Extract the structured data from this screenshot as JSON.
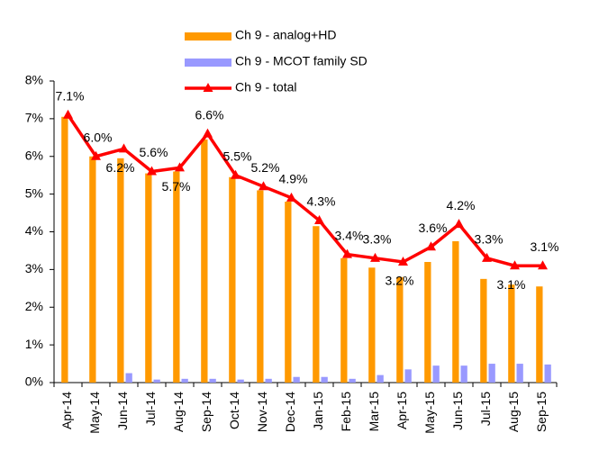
{
  "chart_data": {
    "type": "bar-line",
    "categories": [
      "Apr-14",
      "May-14",
      "Jun-14",
      "Jul-14",
      "Aug-14",
      "Sep-14",
      "Oct-14",
      "Nov-14",
      "Dec-14",
      "Jan-15",
      "Feb-15",
      "Mar-15",
      "Apr-15",
      "May-15",
      "Jun-15",
      "Jul-15",
      "Aug-15",
      "Sep-15"
    ],
    "series": [
      {
        "name": "Ch 9 - analog+HD",
        "color": "#ff9900",
        "kind": "bar",
        "values": [
          7.05,
          6.0,
          5.95,
          5.55,
          5.6,
          6.45,
          5.45,
          5.1,
          4.8,
          4.15,
          3.3,
          3.05,
          2.8,
          3.2,
          3.75,
          2.75,
          2.6,
          2.55
        ]
      },
      {
        "name": "Ch 9 - MCOT family SD",
        "color": "#9999ff",
        "kind": "bar",
        "values": [
          0,
          0,
          0.25,
          0.08,
          0.1,
          0.1,
          0.08,
          0.1,
          0.15,
          0.15,
          0.1,
          0.2,
          0.35,
          0.45,
          0.45,
          0.5,
          0.5,
          0.48
        ]
      },
      {
        "name": "Ch 9 - total",
        "color": "#ff0000",
        "kind": "line",
        "values": [
          7.1,
          6.0,
          6.2,
          5.6,
          5.7,
          6.6,
          5.5,
          5.2,
          4.9,
          4.3,
          3.4,
          3.3,
          3.2,
          3.6,
          4.2,
          3.3,
          3.1,
          3.1
        ],
        "value_labels": [
          "7.1%",
          "6.0%",
          "6.2%",
          "5.6%",
          "5.7%",
          "6.6%",
          "5.5%",
          "5.2%",
          "4.9%",
          "4.3%",
          "3.4%",
          "3.3%",
          "3.2%",
          "3.6%",
          "4.2%",
          "3.3%",
          "3.1%",
          "3.1%"
        ]
      }
    ],
    "ylim": [
      0,
      8
    ],
    "yticks": [
      {
        "value": 0,
        "label": "0%"
      },
      {
        "value": 1,
        "label": "1%"
      },
      {
        "value": 2,
        "label": "2%"
      },
      {
        "value": 3,
        "label": "3%"
      },
      {
        "value": 4,
        "label": "4%"
      },
      {
        "value": 5,
        "label": "5%"
      },
      {
        "value": 6,
        "label": "6%"
      },
      {
        "value": 7,
        "label": "7%"
      },
      {
        "value": 8,
        "label": "8%"
      }
    ],
    "grid": false
  }
}
